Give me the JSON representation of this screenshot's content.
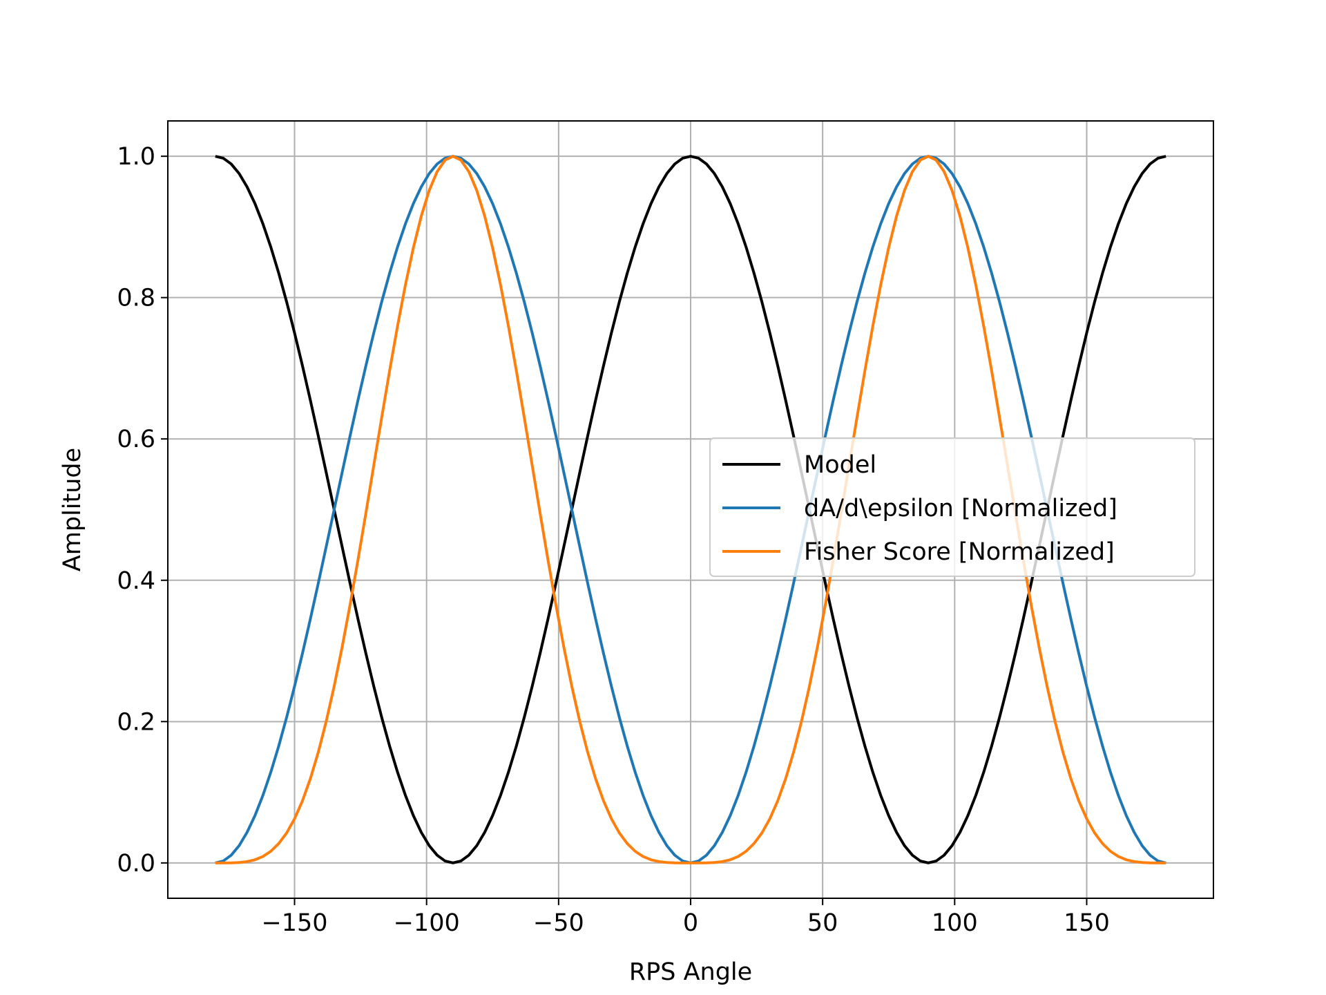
{
  "chart_data": {
    "type": "line",
    "title": "",
    "xlabel": "RPS Angle",
    "ylabel": "Amplitude",
    "xlim": [
      -198,
      198
    ],
    "ylim": [
      -0.05,
      1.05
    ],
    "xticks": [
      -150,
      -100,
      -50,
      0,
      50,
      100,
      150
    ],
    "xtick_labels": [
      "−150",
      "−100",
      "−50",
      "0",
      "50",
      "100",
      "150"
    ],
    "yticks": [
      0.0,
      0.2,
      0.4,
      0.6,
      0.8,
      1.0
    ],
    "ytick_labels": [
      "0.0",
      "0.2",
      "0.4",
      "0.6",
      "0.8",
      "1.0"
    ],
    "grid": true,
    "legend_position": "center-right",
    "x": {
      "start": -180,
      "stop": 180,
      "count": 121
    },
    "series": [
      {
        "name": "Model",
        "color": "#000000",
        "function": "cos^2(x)"
      },
      {
        "name": "dA/d\\epsilon [Normalized]",
        "color": "#1f77b4",
        "function": "sin^2(x)"
      },
      {
        "name": "Fisher Score [Normalized]",
        "color": "#ff7f0e",
        "function": "sin^4(x)"
      }
    ]
  }
}
